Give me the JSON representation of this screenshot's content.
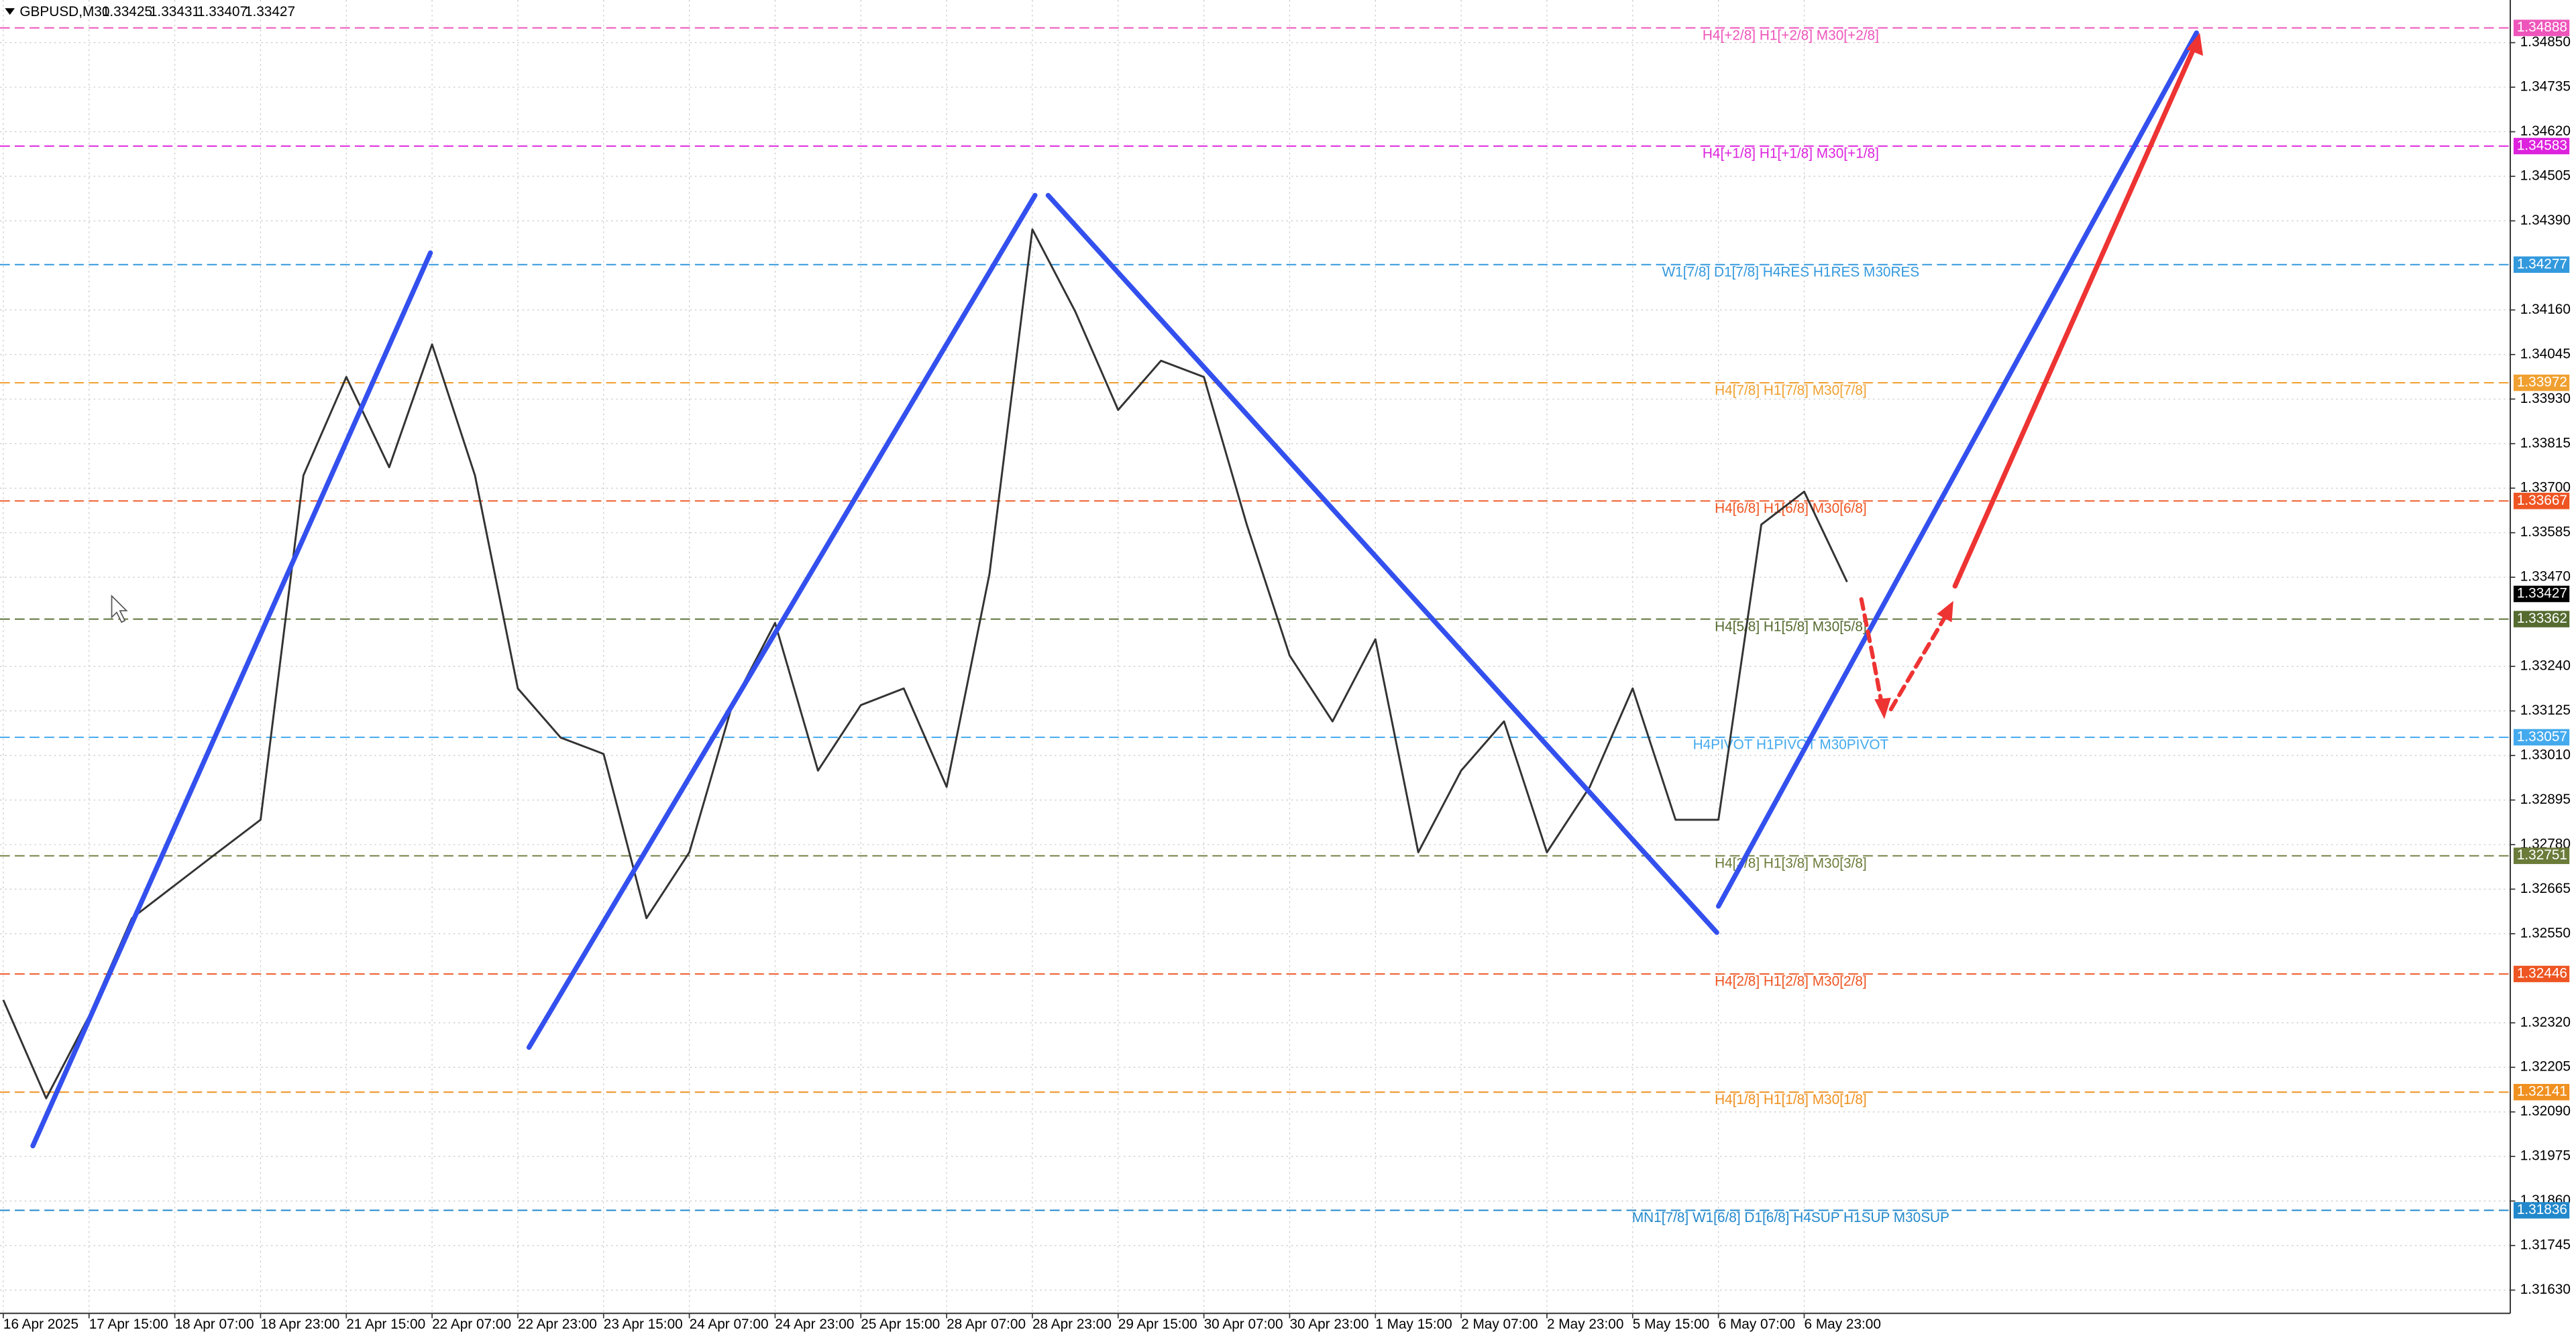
{
  "chart_data": {
    "type": "line",
    "title": "GBPUSD,M30",
    "ohlc": [
      1.33425,
      1.33431,
      1.33407,
      1.33427
    ],
    "last_price": 1.33427,
    "categories": [
      "16 Apr 2025",
      null,
      "17 Apr 15:00",
      null,
      "18 Apr 07:00",
      null,
      "18 Apr 23:00",
      null,
      "21 Apr 15:00",
      null,
      "22 Apr 07:00",
      null,
      "22 Apr 23:00",
      null,
      "23 Apr 15:00",
      null,
      "24 Apr 07:00",
      null,
      "24 Apr 23:00",
      null,
      "25 Apr 15:00",
      null,
      "28 Apr 07:00",
      null,
      "28 Apr 23:00",
      null,
      "29 Apr 15:00",
      null,
      "30 Apr 07:00",
      null,
      "30 Apr 23:00",
      null,
      "1 May 15:00",
      null,
      "2 May 07:00",
      null,
      "2 May 23:00",
      null,
      "5 May 15:00",
      null,
      "6 May 07:00",
      null,
      "6 May 23:00",
      null
    ],
    "series": [
      {
        "name": "GBPUSD",
        "color": "#333333",
        "values": [
          1.32379,
          1.32125,
          1.32337,
          1.3259,
          1.32675,
          1.3276,
          1.32844,
          1.33733,
          1.33987,
          1.33754,
          1.34071,
          1.33733,
          1.33183,
          1.33056,
          1.33014,
          1.3259,
          1.3276,
          1.3314,
          1.33352,
          1.32971,
          1.3314,
          1.33183,
          1.32929,
          1.33479,
          1.34368,
          1.34156,
          1.33902,
          1.34029,
          1.33987,
          1.33606,
          1.33268,
          1.33098,
          1.3331,
          1.3276,
          1.32971,
          1.33098,
          1.3276,
          1.32929,
          1.33183,
          1.32844,
          1.32844,
          1.33606,
          1.33691,
          1.33458
        ]
      }
    ],
    "ylim": [
      1.3157,
      1.3496
    ],
    "yticks": [
      {
        "value": 1.3163,
        "label": "1.31630"
      },
      1.31745,
      {
        "value": 1.3186,
        "label": "1.31860"
      },
      1.31975,
      {
        "value": 1.3209,
        "label": "1.32090"
      },
      1.32205,
      {
        "value": 1.3232,
        "label": "1.32320"
      },
      {
        "value": 1.3255,
        "label": "1.32550"
      },
      1.32665,
      {
        "value": 1.3278,
        "label": "1.32780"
      },
      1.32895,
      {
        "value": 1.3301,
        "label": "1.33010"
      },
      1.33125,
      {
        "value": 1.3324,
        "label": "1.33240"
      },
      {
        "value": 1.3347,
        "label": "1.33470"
      },
      1.33585,
      {
        "value": 1.337,
        "label": "1.33700"
      },
      1.33815,
      {
        "value": 1.3393,
        "label": "1.33930"
      },
      1.34045,
      {
        "value": 1.3416,
        "label": "1.34160"
      },
      {
        "value": 1.3439,
        "label": "1.34390"
      },
      1.34505,
      {
        "value": 1.3462,
        "label": "1.34620"
      },
      1.34735,
      {
        "value": 1.3485,
        "label": "1.34850"
      }
    ],
    "grid": true,
    "levels": [
      {
        "label": "H4[+2/8] H1[+2/8] M30[+2/8]",
        "value": 1.34888,
        "color": "#ee55bb"
      },
      {
        "label": "H4[+1/8] H1[+1/8] M30[+1/8]",
        "value": 1.34583,
        "color": "#dd22dd"
      },
      {
        "label": "W1[7/8] D1[7/8] H4RES H1RES M30RES",
        "value": 1.34277,
        "color": "#3399dd"
      },
      {
        "label": "H4[7/8] H1[7/8] M30[7/8]",
        "value": 1.33972,
        "color": "#f0a030"
      },
      {
        "label": "H4[6/8] H1[6/8] M30[6/8]",
        "value": 1.33667,
        "color": "#ee5522"
      },
      {
        "label": "H4[5/8] H1[5/8] M30[5/8]",
        "value": 1.33362,
        "color": "#556b2f"
      },
      {
        "label": "H4PIVOT H1PIVOT M30PIVOT",
        "value": 1.33057,
        "color": "#44aaee"
      },
      {
        "label": "H4[3/8] H1[3/8] M30[3/8]",
        "value": 1.32751,
        "color": "#6b7b3a"
      },
      {
        "label": "H4[2/8] H1[2/8] M30[2/8]",
        "value": 1.32446,
        "color": "#ee5522"
      },
      {
        "label": "H4[1/8] H1[1/8] M30[1/8]",
        "value": 1.32141,
        "color": "#f09020"
      },
      {
        "label": "MN1[7/8] W1[6/8] D1[6/8] H4SUP H1SUP M30SUP",
        "value": 1.31836,
        "color": "#2288cc"
      }
    ]
  }
}
